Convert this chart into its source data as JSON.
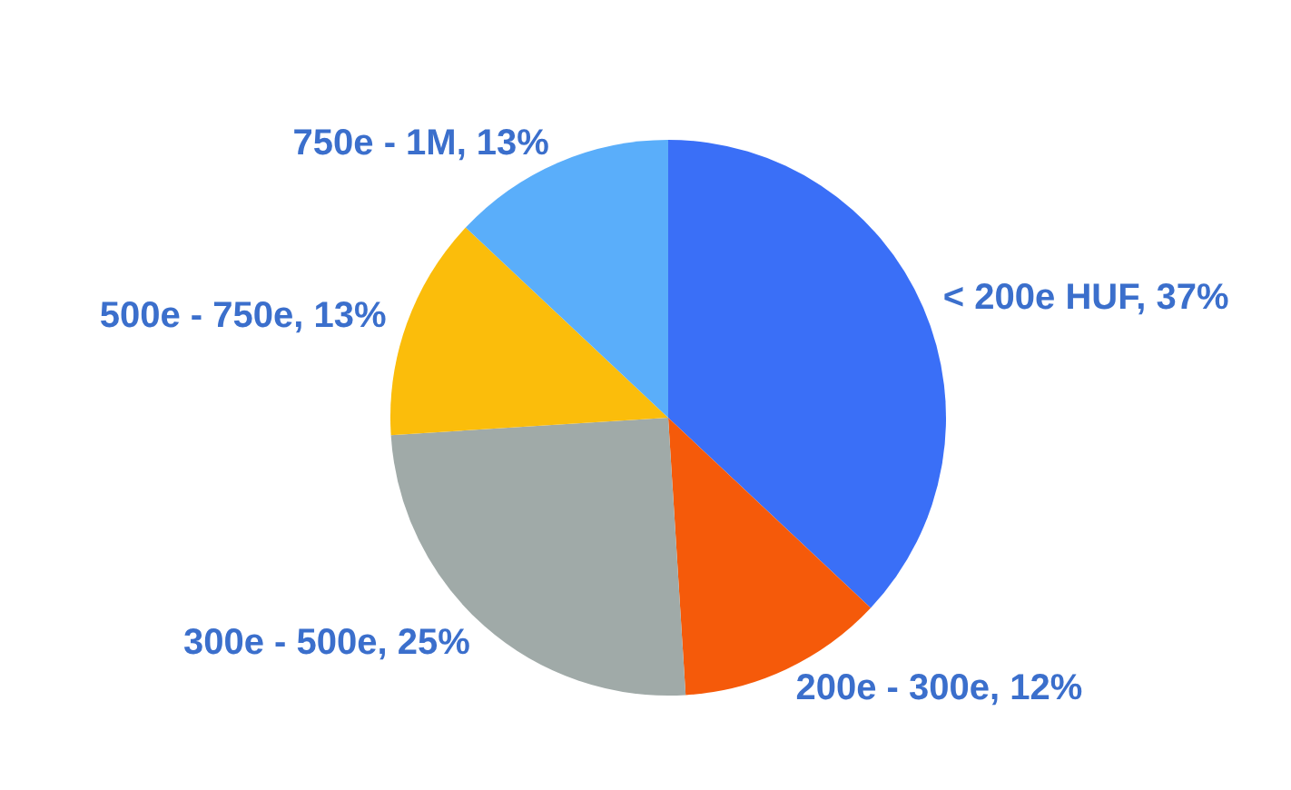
{
  "chart_data": {
    "type": "pie",
    "categories": [
      "< 200e HUF",
      "200e - 300e",
      "300e - 500e",
      "500e - 750e",
      "750e - 1M"
    ],
    "values": [
      37,
      12,
      25,
      13,
      13
    ],
    "colors": [
      "#3a6ff7",
      "#f55a0a",
      "#a0aaa8",
      "#fbbd0b",
      "#5aaefa"
    ],
    "value_labels": [
      "37%",
      "12%",
      "25%",
      "13%",
      "13%"
    ],
    "legend": false
  }
}
